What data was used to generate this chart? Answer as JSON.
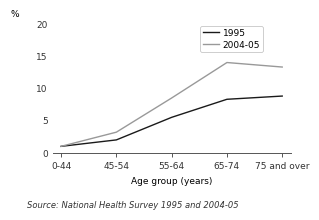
{
  "categories": [
    "0-44",
    "45-54",
    "55-64",
    "65-74",
    "75 and over"
  ],
  "series_1995": [
    1.0,
    2.0,
    5.5,
    8.3,
    8.8
  ],
  "series_2004": [
    1.0,
    3.2,
    8.5,
    14.0,
    13.3
  ],
  "label_1995": "1995",
  "label_2004": "2004-05",
  "color_1995": "#1a1a1a",
  "color_2004": "#999999",
  "xlabel": "Age group (years)",
  "percent_label": "%",
  "ylim": [
    0,
    20
  ],
  "yticks": [
    0,
    5,
    10,
    15,
    20
  ],
  "source": "Source: National Health Survey 1995 and 2004-05",
  "legend_fontsize": 6.5,
  "axis_fontsize": 6.5,
  "source_fontsize": 6.0,
  "linewidth": 1.0
}
